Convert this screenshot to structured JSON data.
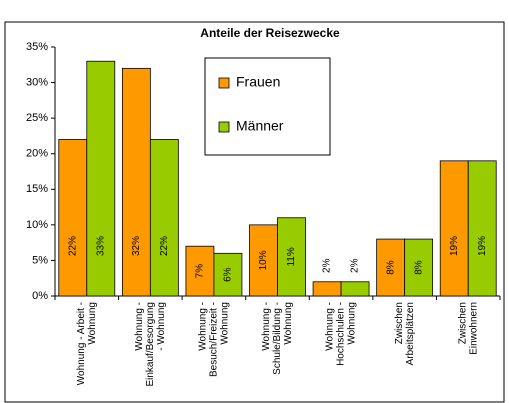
{
  "chart_data": {
    "type": "bar",
    "title": "Anteile der Reisezwecke",
    "categories": [
      [
        "Wohnung - Arbeit -",
        "Wohnung"
      ],
      [
        "Wohnung -",
        "Einkauf/Besorgung",
        "- Wohnung"
      ],
      [
        "Wohnung -",
        "Besuch/Freizeit -",
        "Wohnung"
      ],
      [
        "Wohnung -",
        "Schule/Bildung -",
        "Wohnung"
      ],
      [
        "Wohnung -",
        "Hochschulen -",
        "Wohnung"
      ],
      [
        "Zwischen",
        "Arbeitsplätzen"
      ],
      [
        "Zwischen",
        "Einwohnern"
      ]
    ],
    "series": [
      {
        "name": "Frauen",
        "color": "#ff9900",
        "values": [
          22,
          32,
          7,
          10,
          2,
          8,
          19
        ],
        "value_labels": [
          "22%",
          "32%",
          "7%",
          "10%",
          "2%",
          "8%",
          "19%"
        ]
      },
      {
        "name": "Männer",
        "color": "#99cc00",
        "values": [
          33,
          22,
          6,
          11,
          2,
          8,
          19
        ],
        "value_labels": [
          "33%",
          "22%",
          "6%",
          "11%",
          "2%",
          "8%",
          "19%"
        ]
      }
    ],
    "ylim": [
      0,
      35
    ],
    "yticks": [
      {
        "value": 0,
        "label": "0%"
      },
      {
        "value": 5,
        "label": "5%"
      },
      {
        "value": 10,
        "label": "10%"
      },
      {
        "value": 15,
        "label": "15%"
      },
      {
        "value": 20,
        "label": "20%"
      },
      {
        "value": 25,
        "label": "25%"
      },
      {
        "value": 30,
        "label": "30%"
      },
      {
        "value": 35,
        "label": "35%"
      }
    ],
    "grid": false
  }
}
